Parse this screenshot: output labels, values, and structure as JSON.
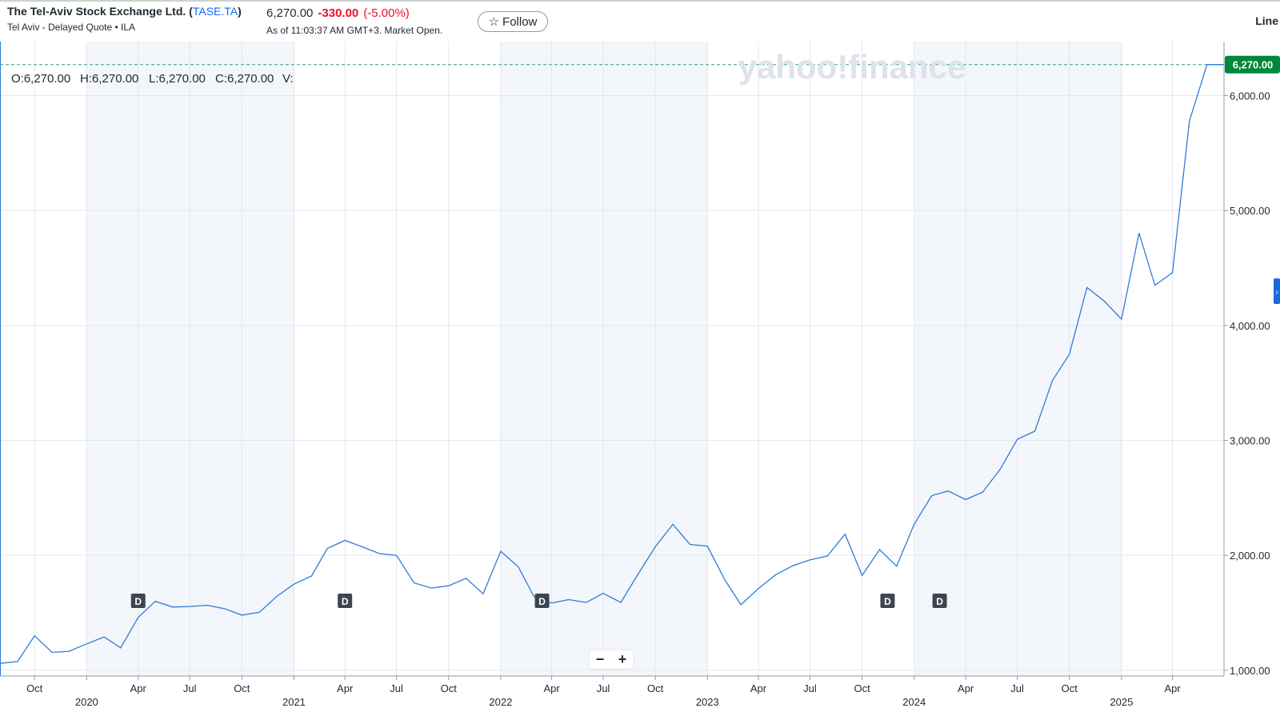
{
  "header": {
    "company": "The Tel-Aviv Stock Exchange Ltd.",
    "symbol": "TASE.TA",
    "exchange_info": "Tel Aviv - Delayed Quote • ILA",
    "price": "6,270.00",
    "change": "-330.00",
    "change_pct": "(-5.00%)",
    "as_of": "As of 11:03:37 AM GMT+3. Market Open.",
    "follow_label": "Follow",
    "chart_type_label": "Line"
  },
  "ohlc": {
    "open": "O:6,270.00",
    "high": "H:6,270.00",
    "low": "L:6,270.00",
    "close": "C:6,270.00",
    "volume": "V:"
  },
  "watermark": "yahoo!finance",
  "current_price_tag": "6,270.00",
  "colors": {
    "line": "#2f7bd8",
    "price_tag": "#00873c",
    "negative": "#eb0f29",
    "symbol_link": "#0f69ff",
    "year_band": "#f3f6fa"
  },
  "zoom_controls": {
    "minus": "−",
    "plus": "+"
  },
  "dividend_marker_label": "D",
  "chart_data": {
    "type": "line",
    "title": "",
    "xlabel": "",
    "ylabel": "",
    "ylim": [
      950,
      6470
    ],
    "xlim": [
      "2019-08-01",
      "2025-07-01"
    ],
    "grid": true,
    "y_ticks": [
      "1,000.00",
      "2,000.00",
      "3,000.00",
      "4,000.00",
      "5,000.00",
      "6,000.00"
    ],
    "y_tick_values": [
      1000,
      2000,
      3000,
      4000,
      5000,
      6000
    ],
    "x_month_ticks": [
      {
        "label": "Oct",
        "date": "2019-10-01"
      },
      {
        "label": "Apr",
        "date": "2020-04-01"
      },
      {
        "label": "Jul",
        "date": "2020-07-01"
      },
      {
        "label": "Oct",
        "date": "2020-10-01"
      },
      {
        "label": "Apr",
        "date": "2021-04-01"
      },
      {
        "label": "Jul",
        "date": "2021-07-01"
      },
      {
        "label": "Oct",
        "date": "2021-10-01"
      },
      {
        "label": "Apr",
        "date": "2022-04-01"
      },
      {
        "label": "Jul",
        "date": "2022-07-01"
      },
      {
        "label": "Oct",
        "date": "2022-10-01"
      },
      {
        "label": "Apr",
        "date": "2023-04-01"
      },
      {
        "label": "Jul",
        "date": "2023-07-01"
      },
      {
        "label": "Oct",
        "date": "2023-10-01"
      },
      {
        "label": "Apr",
        "date": "2024-04-01"
      },
      {
        "label": "Jul",
        "date": "2024-07-01"
      },
      {
        "label": "Oct",
        "date": "2024-10-01"
      },
      {
        "label": "Apr",
        "date": "2025-04-01"
      }
    ],
    "x_year_ticks": [
      {
        "label": "2020",
        "date": "2020-01-01"
      },
      {
        "label": "2021",
        "date": "2021-01-01"
      },
      {
        "label": "2022",
        "date": "2022-01-01"
      },
      {
        "label": "2023",
        "date": "2023-01-01"
      },
      {
        "label": "2024",
        "date": "2024-01-01"
      },
      {
        "label": "2025",
        "date": "2025-01-01"
      }
    ],
    "dividends": [
      "2020-04-01",
      "2021-04-01",
      "2022-03-15",
      "2023-11-15",
      "2024-02-15"
    ],
    "series": [
      {
        "x": [
          "2019-08-01",
          "2019-09-01",
          "2019-10-01",
          "2019-11-01",
          "2019-12-01",
          "2020-01-01",
          "2020-02-01",
          "2020-03-01",
          "2020-04-01",
          "2020-05-01",
          "2020-06-01",
          "2020-07-01",
          "2020-08-01",
          "2020-09-01",
          "2020-10-01",
          "2020-11-01",
          "2020-12-01",
          "2021-01-01",
          "2021-02-01",
          "2021-03-01",
          "2021-04-01",
          "2021-05-01",
          "2021-06-01",
          "2021-07-01",
          "2021-08-01",
          "2021-09-01",
          "2021-10-01",
          "2021-11-01",
          "2021-12-01",
          "2022-01-01",
          "2022-02-01",
          "2022-03-01",
          "2022-04-01",
          "2022-05-01",
          "2022-06-01",
          "2022-07-01",
          "2022-08-01",
          "2022-09-01",
          "2022-10-01",
          "2022-11-01",
          "2022-12-01",
          "2023-01-01",
          "2023-02-01",
          "2023-03-01",
          "2023-04-01",
          "2023-05-01",
          "2023-06-01",
          "2023-07-01",
          "2023-08-01",
          "2023-09-01",
          "2023-10-01",
          "2023-11-01",
          "2023-12-01",
          "2024-01-01",
          "2024-02-01",
          "2024-03-01",
          "2024-04-01",
          "2024-05-01",
          "2024-06-01",
          "2024-07-01",
          "2024-08-01",
          "2024-09-01",
          "2024-10-01",
          "2024-11-01",
          "2024-12-01",
          "2025-01-01",
          "2025-02-01",
          "2025-03-01",
          "2025-04-01",
          "2025-05-01",
          "2025-06-01",
          "2025-07-01"
        ],
        "values": [
          1060,
          1075,
          1300,
          1155,
          1165,
          1230,
          1290,
          1195,
          1460,
          1600,
          1550,
          1555,
          1565,
          1535,
          1480,
          1505,
          1640,
          1750,
          1820,
          2060,
          2130,
          2075,
          2015,
          2000,
          1760,
          1715,
          1735,
          1800,
          1665,
          2035,
          1900,
          1640,
          1585,
          1615,
          1590,
          1670,
          1590,
          1840,
          2075,
          2270,
          2095,
          2080,
          1785,
          1570,
          1710,
          1830,
          1910,
          1960,
          1995,
          2185,
          1825,
          2050,
          1905,
          2270,
          2520,
          2560,
          2485,
          2550,
          2750,
          3010,
          3080,
          3520,
          3750,
          4330,
          4215,
          4055,
          4805,
          4350,
          4460,
          5780,
          6270,
          6270
        ]
      }
    ]
  }
}
